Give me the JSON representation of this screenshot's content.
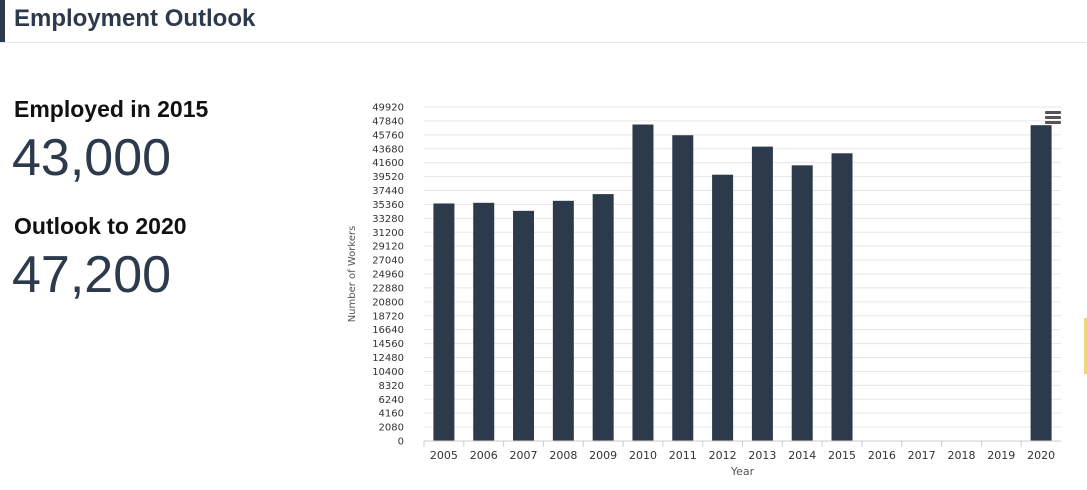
{
  "header": {
    "title": "Employment Outlook"
  },
  "stats": {
    "employed_label": "Employed in 2015",
    "employed_value": "43,000",
    "outlook_label": "Outlook to 2020",
    "outlook_value": "47,200"
  },
  "colors": {
    "bar": "#2d3a4b",
    "grid": "#e6e6e6",
    "text": "#2d3a4b"
  },
  "icons": {
    "chart_menu": "hamburger-menu-icon"
  },
  "chart_data": {
    "type": "bar",
    "xlabel": "Year",
    "ylabel": "Number of Workers",
    "ylim": [
      0,
      49920
    ],
    "ytick_step": 2080,
    "grid": true,
    "legend": "none",
    "categories": [
      "2005",
      "2006",
      "2007",
      "2008",
      "2009",
      "2010",
      "2011",
      "2012",
      "2013",
      "2014",
      "2015",
      "2016",
      "2017",
      "2018",
      "2019",
      "2020"
    ],
    "values": [
      35500,
      35600,
      34400,
      35900,
      36900,
      47300,
      45700,
      39800,
      44000,
      41200,
      43000,
      null,
      null,
      null,
      null,
      47200
    ]
  }
}
